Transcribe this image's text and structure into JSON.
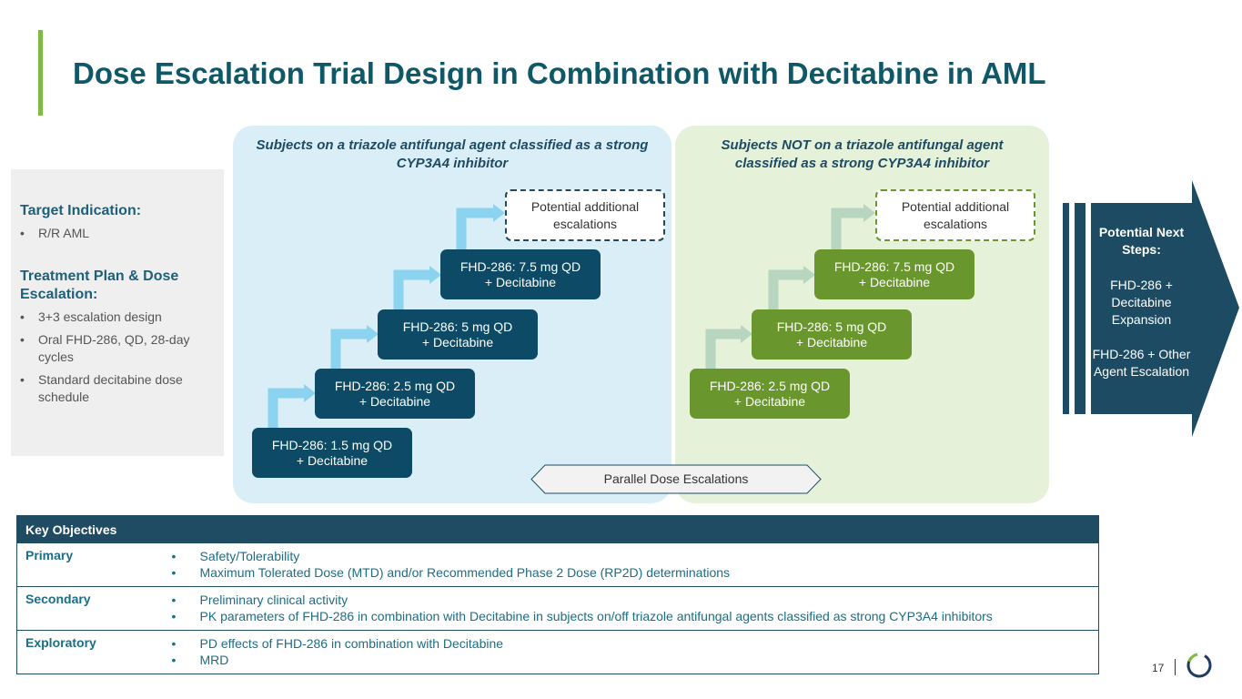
{
  "title": "Dose Escalation Trial Design in Combination with Decitabine in AML",
  "left_panel": {
    "target_heading": "Target Indication:",
    "target_items": [
      "R/R AML"
    ],
    "plan_heading": "Treatment Plan & Dose Escalation:",
    "plan_items": [
      "3+3 escalation design",
      "Oral FHD-286, QD, 28-day cycles",
      "Standard decitabine dose schedule"
    ]
  },
  "blue_panel": {
    "heading": "Subjects on a triazole antifungal agent classified as a strong CYP3A4 inhibitor",
    "steps": [
      {
        "line1": "FHD-286: 1.5 mg QD",
        "line2": "+ Decitabine"
      },
      {
        "line1": "FHD-286: 2.5 mg QD",
        "line2": "+ Decitabine"
      },
      {
        "line1": "FHD-286: 5 mg QD",
        "line2": "+ Decitabine"
      },
      {
        "line1": "FHD-286: 7.5 mg QD",
        "line2": "+ Decitabine"
      }
    ],
    "additional": "Potential additional escalations"
  },
  "green_panel": {
    "heading": "Subjects NOT on a triazole antifungal agent classified as a strong CYP3A4 inhibitor",
    "steps": [
      {
        "line1": "FHD-286: 2.5 mg QD",
        "line2": "+ Decitabine"
      },
      {
        "line1": "FHD-286: 5 mg QD",
        "line2": "+ Decitabine"
      },
      {
        "line1": "FHD-286: 7.5 mg QD",
        "line2": "+ Decitabine"
      }
    ],
    "additional": "Potential additional escalations"
  },
  "parallel_label": "Parallel Dose Escalations",
  "next_steps": {
    "heading": "Potential Next Steps:",
    "item1": "FHD-286 + Decitabine Expansion",
    "item2": "FHD-286 + Other Agent Escalation"
  },
  "objectives": {
    "header": "Key Objectives",
    "rows": [
      {
        "label": "Primary",
        "items": [
          "Safety/Tolerability",
          "Maximum Tolerated Dose (MTD) and/or Recommended Phase 2 Dose (RP2D) determinations"
        ]
      },
      {
        "label": "Secondary",
        "items": [
          "Preliminary clinical activity",
          "PK parameters of FHD-286 in combination with Decitabine in subjects on/off triazole antifungal agents classified as strong CYP3A4 inhibitors"
        ]
      },
      {
        "label": "Exploratory",
        "items": [
          "PD effects of FHD-286 in combination with Decitabine",
          "MRD"
        ]
      }
    ]
  },
  "page_number": "17",
  "colors": {
    "accent_green": "#7dbb42",
    "navy": "#0c4a66",
    "olive": "#6a962e",
    "light_blue_panel": "#daeef8",
    "light_green_panel": "#e6f1da",
    "arrow_blue": "#8bd3ee",
    "arrow_green": "#b7d5bf"
  }
}
